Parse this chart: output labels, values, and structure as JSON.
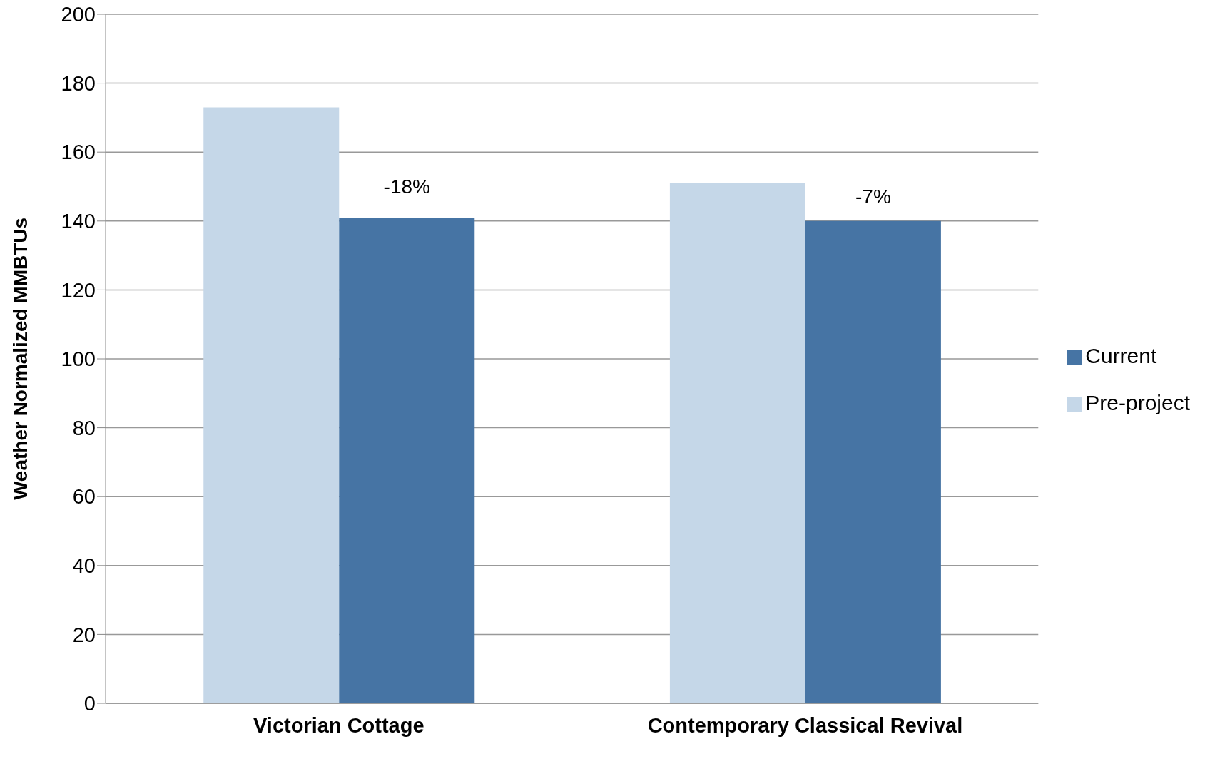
{
  "chart_data": {
    "type": "bar",
    "ylabel": "Weather Normalized MMBTUs",
    "categories": [
      "Victorian Cottage",
      "Contemporary Classical Revival"
    ],
    "series": [
      {
        "name": "Pre-project",
        "color": "#c5d7e8",
        "values": [
          173,
          151
        ]
      },
      {
        "name": "Current",
        "color": "#4674a4",
        "values": [
          141,
          140
        ]
      }
    ],
    "ylim": [
      0,
      200
    ],
    "yticks": [
      0,
      20,
      40,
      60,
      80,
      100,
      120,
      140,
      160,
      180,
      200
    ],
    "grid": "y",
    "legend": "right",
    "annotations": [
      {
        "text": "-18%",
        "x": "Victorian Cottage",
        "y": 150
      },
      {
        "text": "-7%",
        "x": "Contemporary Classical Revival",
        "y": 147
      }
    ]
  }
}
